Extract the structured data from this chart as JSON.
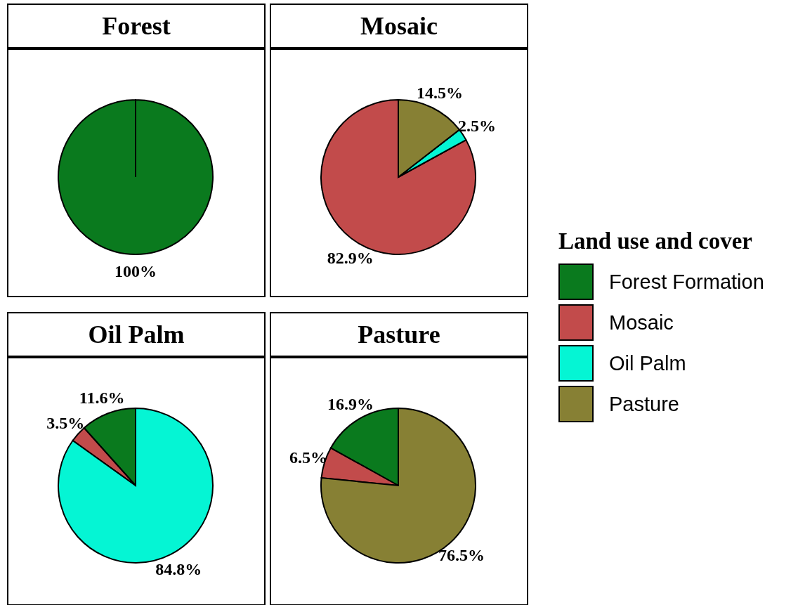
{
  "chart_data": [
    {
      "type": "pie",
      "title": "Forest",
      "categories": [
        "Forest Formation",
        "Mosaic",
        "Oil Palm",
        "Pasture"
      ],
      "values": [
        100,
        0,
        0,
        0
      ],
      "value_labels": [
        "100%",
        null,
        null,
        null
      ],
      "colors": [
        "#0a7a1e",
        "#c24b4b",
        "#05f5d4",
        "#878034"
      ],
      "legend": "right",
      "legend_title": "Land use and cover"
    },
    {
      "type": "pie",
      "title": "Mosaic",
      "categories": [
        null,
        null,
        null,
        null
      ],
      "values": [
        0,
        82.9,
        2.5,
        14.5
      ],
      "value_labels": [
        null,
        "82.9%",
        "2.5%",
        "14.5%"
      ],
      "colors": [
        "#0a7a1e",
        "#c24b4b",
        "#05f5d4",
        "#878034"
      ]
    },
    {
      "type": "pie",
      "title": "Oil Palm",
      "categories": [
        null,
        null,
        null,
        null
      ],
      "values": [
        11.6,
        3.5,
        84.8,
        0
      ],
      "value_labels": [
        "11.6%",
        "3.5%",
        "84.8%",
        null
      ],
      "colors": [
        "#0a7a1e",
        "#c24b4b",
        "#05f5d4",
        "#878034"
      ]
    },
    {
      "type": "pie",
      "title": "Pasture",
      "categories": [
        null,
        null,
        null,
        null
      ],
      "values": [
        16.9,
        6.5,
        0,
        76.5
      ],
      "value_labels": [
        "16.9%",
        "6.5%",
        null,
        "76.5%"
      ],
      "colors": [
        "#0a7a1e",
        "#c24b4b",
        "#05f5d4",
        "#878034"
      ]
    }
  ]
}
